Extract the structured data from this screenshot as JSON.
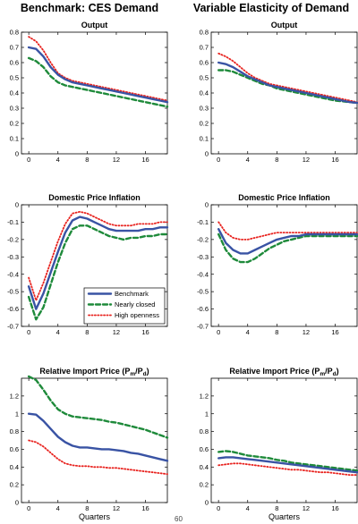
{
  "columns": [
    "Benchmark: CES Demand",
    "Variable Elasticity of Demand"
  ],
  "page_number": "60",
  "legend": [
    "Benchmark",
    "Nearly closed",
    "High openness"
  ],
  "series_styles": [
    {
      "name": "Benchmark",
      "color": "#3953a4",
      "dash": "solid"
    },
    {
      "name": "Nearly closed",
      "color": "#1e8a3a",
      "dash": "dashed"
    },
    {
      "name": "High openness",
      "color": "#e8231f",
      "dash": "dotted"
    }
  ],
  "chart_data": [
    {
      "type": "line",
      "title": "Output",
      "xlabel": "",
      "ylabel": "",
      "xlim": [
        -1,
        19
      ],
      "ylim": [
        0,
        0.8
      ],
      "yticks": [
        "0",
        "0.1",
        "0.2",
        "0.3",
        "0.4",
        "0.5",
        "0.6",
        "0.7",
        "0.8"
      ],
      "xticks": [
        "0",
        "4",
        "8",
        "12",
        "16"
      ],
      "x": [
        0,
        1,
        2,
        3,
        4,
        5,
        6,
        7,
        8,
        9,
        10,
        11,
        12,
        13,
        14,
        15,
        16,
        17,
        18,
        19
      ],
      "series": [
        {
          "values": [
            0.7,
            0.69,
            0.64,
            0.57,
            0.52,
            0.49,
            0.47,
            0.46,
            0.45,
            0.44,
            0.43,
            0.42,
            0.41,
            0.4,
            0.39,
            0.38,
            0.37,
            0.36,
            0.35,
            0.34
          ]
        },
        {
          "values": [
            0.63,
            0.61,
            0.57,
            0.51,
            0.47,
            0.45,
            0.44,
            0.43,
            0.42,
            0.41,
            0.4,
            0.39,
            0.38,
            0.37,
            0.36,
            0.35,
            0.34,
            0.33,
            0.32,
            0.31
          ]
        },
        {
          "values": [
            0.77,
            0.74,
            0.68,
            0.6,
            0.53,
            0.5,
            0.48,
            0.47,
            0.46,
            0.45,
            0.44,
            0.43,
            0.42,
            0.41,
            0.4,
            0.39,
            0.38,
            0.37,
            0.36,
            0.35
          ]
        }
      ]
    },
    {
      "type": "line",
      "title": "Output",
      "xlabel": "",
      "ylabel": "",
      "xlim": [
        -1,
        19
      ],
      "ylim": [
        0,
        0.8
      ],
      "yticks": [
        "0",
        "0.1",
        "0.2",
        "0.3",
        "0.4",
        "0.5",
        "0.6",
        "0.7",
        "0.8"
      ],
      "xticks": [
        "0",
        "4",
        "8",
        "12",
        "16"
      ],
      "x": [
        0,
        1,
        2,
        3,
        4,
        5,
        6,
        7,
        8,
        9,
        10,
        11,
        12,
        13,
        14,
        15,
        16,
        17,
        18,
        19
      ],
      "series": [
        {
          "values": [
            0.6,
            0.59,
            0.57,
            0.54,
            0.51,
            0.49,
            0.47,
            0.45,
            0.44,
            0.43,
            0.42,
            0.41,
            0.4,
            0.39,
            0.38,
            0.37,
            0.36,
            0.35,
            0.34,
            0.335
          ]
        },
        {
          "values": [
            0.55,
            0.55,
            0.54,
            0.52,
            0.5,
            0.48,
            0.46,
            0.45,
            0.43,
            0.42,
            0.41,
            0.4,
            0.39,
            0.38,
            0.37,
            0.36,
            0.35,
            0.345,
            0.34,
            0.335
          ]
        },
        {
          "values": [
            0.66,
            0.64,
            0.61,
            0.57,
            0.53,
            0.5,
            0.48,
            0.46,
            0.45,
            0.44,
            0.43,
            0.42,
            0.41,
            0.4,
            0.39,
            0.38,
            0.37,
            0.36,
            0.35,
            0.34
          ]
        }
      ]
    },
    {
      "type": "line",
      "title": "Domestic Price Inflation",
      "xlabel": "",
      "ylabel": "",
      "xlim": [
        -1,
        19
      ],
      "ylim": [
        -0.7,
        0
      ],
      "yticks": [
        "-0.7",
        "-0.6",
        "-0.5",
        "-0.4",
        "-0.3",
        "-0.2",
        "-0.1",
        "0"
      ],
      "xticks": [
        "0",
        "4",
        "8",
        "12",
        "16"
      ],
      "x": [
        0,
        1,
        2,
        3,
        4,
        5,
        6,
        7,
        8,
        9,
        10,
        11,
        12,
        13,
        14,
        15,
        16,
        17,
        18,
        19
      ],
      "series": [
        {
          "values": [
            -0.47,
            -0.6,
            -0.51,
            -0.39,
            -0.27,
            -0.16,
            -0.09,
            -0.07,
            -0.08,
            -0.1,
            -0.12,
            -0.14,
            -0.15,
            -0.15,
            -0.15,
            -0.15,
            -0.14,
            -0.14,
            -0.13,
            -0.13
          ]
        },
        {
          "values": [
            -0.53,
            -0.66,
            -0.59,
            -0.46,
            -0.33,
            -0.22,
            -0.14,
            -0.12,
            -0.12,
            -0.14,
            -0.16,
            -0.18,
            -0.19,
            -0.2,
            -0.19,
            -0.19,
            -0.18,
            -0.18,
            -0.17,
            -0.17
          ]
        },
        {
          "values": [
            -0.42,
            -0.55,
            -0.45,
            -0.33,
            -0.21,
            -0.11,
            -0.05,
            -0.04,
            -0.05,
            -0.07,
            -0.09,
            -0.11,
            -0.12,
            -0.12,
            -0.12,
            -0.11,
            -0.11,
            -0.11,
            -0.1,
            -0.1
          ]
        }
      ]
    },
    {
      "type": "line",
      "title": "Domestic Price Inflation",
      "xlabel": "",
      "ylabel": "",
      "xlim": [
        -1,
        19
      ],
      "ylim": [
        -0.7,
        0
      ],
      "yticks": [
        "-0.7",
        "-0.6",
        "-0.5",
        "-0.4",
        "-0.3",
        "-0.2",
        "-0.1",
        "0"
      ],
      "xticks": [
        "0",
        "4",
        "8",
        "12",
        "16"
      ],
      "x": [
        0,
        1,
        2,
        3,
        4,
        5,
        6,
        7,
        8,
        9,
        10,
        11,
        12,
        13,
        14,
        15,
        16,
        17,
        18,
        19
      ],
      "series": [
        {
          "values": [
            -0.14,
            -0.22,
            -0.26,
            -0.28,
            -0.28,
            -0.26,
            -0.24,
            -0.22,
            -0.2,
            -0.19,
            -0.18,
            -0.18,
            -0.17,
            -0.17,
            -0.17,
            -0.17,
            -0.17,
            -0.17,
            -0.17,
            -0.17
          ]
        },
        {
          "values": [
            -0.17,
            -0.26,
            -0.31,
            -0.33,
            -0.33,
            -0.31,
            -0.28,
            -0.25,
            -0.23,
            -0.21,
            -0.2,
            -0.19,
            -0.18,
            -0.18,
            -0.18,
            -0.18,
            -0.18,
            -0.18,
            -0.18,
            -0.18
          ]
        },
        {
          "values": [
            -0.1,
            -0.16,
            -0.19,
            -0.2,
            -0.2,
            -0.19,
            -0.18,
            -0.17,
            -0.16,
            -0.16,
            -0.16,
            -0.16,
            -0.16,
            -0.16,
            -0.16,
            -0.16,
            -0.16,
            -0.16,
            -0.16,
            -0.16
          ]
        }
      ]
    },
    {
      "type": "line",
      "title": "Relative Import Price (P_m/P_d)",
      "title_main": "Relative Import Price (P",
      "title_sub1": "m",
      "title_mid": "/P",
      "title_sub2": "d",
      "title_end": ")",
      "xlabel": "Quarters",
      "ylabel": "",
      "xlim": [
        -1,
        19
      ],
      "ylim": [
        0,
        1.4
      ],
      "yticks": [
        "0",
        "0.2",
        "0.4",
        "0.6",
        "0.8",
        "1",
        "1.2"
      ],
      "xticks": [
        "0",
        "4",
        "8",
        "12",
        "16"
      ],
      "x": [
        0,
        1,
        2,
        3,
        4,
        5,
        6,
        7,
        8,
        9,
        10,
        11,
        12,
        13,
        14,
        15,
        16,
        17,
        18,
        19
      ],
      "series": [
        {
          "values": [
            1.0,
            0.99,
            0.92,
            0.83,
            0.74,
            0.68,
            0.64,
            0.62,
            0.62,
            0.61,
            0.6,
            0.6,
            0.59,
            0.58,
            0.56,
            0.55,
            0.53,
            0.51,
            0.49,
            0.47
          ]
        },
        {
          "values": [
            1.42,
            1.38,
            1.27,
            1.15,
            1.05,
            1.0,
            0.97,
            0.96,
            0.95,
            0.94,
            0.93,
            0.91,
            0.9,
            0.88,
            0.86,
            0.84,
            0.82,
            0.79,
            0.76,
            0.73
          ]
        },
        {
          "values": [
            0.7,
            0.68,
            0.63,
            0.56,
            0.49,
            0.44,
            0.42,
            0.41,
            0.41,
            0.4,
            0.4,
            0.39,
            0.39,
            0.38,
            0.37,
            0.36,
            0.35,
            0.34,
            0.33,
            0.32
          ]
        }
      ]
    },
    {
      "type": "line",
      "title": "Relative Import Price (P_m/P_d)",
      "title_main": "Relative Import Price (P",
      "title_sub1": "m",
      "title_mid": "/P",
      "title_sub2": "d",
      "title_end": ")",
      "xlabel": "Quarters",
      "ylabel": "",
      "xlim": [
        -1,
        19
      ],
      "ylim": [
        0,
        1.4
      ],
      "yticks": [
        "0",
        "0.2",
        "0.4",
        "0.6",
        "0.8",
        "1",
        "1.2"
      ],
      "xticks": [
        "0",
        "4",
        "8",
        "12",
        "16"
      ],
      "x": [
        0,
        1,
        2,
        3,
        4,
        5,
        6,
        7,
        8,
        9,
        10,
        11,
        12,
        13,
        14,
        15,
        16,
        17,
        18,
        19
      ],
      "series": [
        {
          "values": [
            0.5,
            0.51,
            0.51,
            0.5,
            0.49,
            0.48,
            0.47,
            0.46,
            0.45,
            0.44,
            0.43,
            0.42,
            0.41,
            0.4,
            0.39,
            0.38,
            0.37,
            0.36,
            0.35,
            0.34
          ]
        },
        {
          "values": [
            0.57,
            0.58,
            0.57,
            0.55,
            0.53,
            0.52,
            0.51,
            0.5,
            0.48,
            0.47,
            0.45,
            0.44,
            0.43,
            0.42,
            0.41,
            0.4,
            0.39,
            0.38,
            0.37,
            0.36
          ]
        },
        {
          "values": [
            0.42,
            0.43,
            0.44,
            0.44,
            0.43,
            0.42,
            0.41,
            0.4,
            0.39,
            0.38,
            0.37,
            0.37,
            0.36,
            0.35,
            0.34,
            0.34,
            0.33,
            0.32,
            0.31,
            0.31
          ]
        }
      ]
    }
  ]
}
